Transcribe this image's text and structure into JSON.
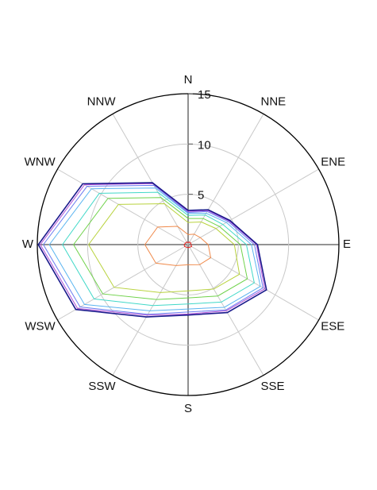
{
  "chart_data": {
    "type": "polar",
    "categories": [
      "N",
      "NNE",
      "ENE",
      "E",
      "ESE",
      "SSE",
      "S",
      "SSW",
      "WSW",
      "W",
      "WNW",
      "NNW"
    ],
    "rlim": [
      0,
      15
    ],
    "rticks": [
      5,
      10,
      15
    ],
    "grid": true,
    "series": [
      {
        "color": "#e8201c",
        "values": [
          0.2,
          0.3,
          0.3,
          0.3,
          0.4,
          0.3,
          0.3,
          0.3,
          0.4,
          0.4,
          0.3,
          0.3
        ]
      },
      {
        "color": "#f08a4b",
        "values": [
          1.0,
          1.2,
          1.4,
          2.0,
          2.6,
          2.3,
          2.0,
          2.4,
          3.7,
          4.3,
          3.5,
          2.1
        ]
      },
      {
        "color": "#b8d23c",
        "values": [
          2.2,
          2.6,
          3.2,
          4.6,
          5.9,
          5.1,
          4.6,
          5.5,
          8.5,
          9.9,
          8.0,
          4.7
        ]
      },
      {
        "color": "#6fd24a",
        "values": [
          2.6,
          3.0,
          3.6,
          5.2,
          6.8,
          5.9,
          5.3,
          6.3,
          9.8,
          11.4,
          9.2,
          5.4
        ]
      },
      {
        "color": "#40d8c8",
        "values": [
          2.9,
          3.4,
          4.0,
          5.8,
          7.6,
          6.6,
          5.9,
          7.0,
          10.8,
          12.5,
          10.2,
          6.0
        ]
      },
      {
        "color": "#5ab4f0",
        "values": [
          3.1,
          3.6,
          4.4,
          6.3,
          8.3,
          7.2,
          6.4,
          7.6,
          11.9,
          13.8,
          11.1,
          6.5
        ]
      },
      {
        "color": "#6a7cf0",
        "values": [
          3.2,
          3.8,
          4.6,
          6.6,
          8.6,
          7.5,
          6.7,
          8.0,
          12.4,
          14.4,
          11.6,
          6.8
        ]
      },
      {
        "color": "#b050d8",
        "values": [
          3.3,
          3.9,
          4.7,
          6.8,
          8.8,
          7.6,
          6.9,
          8.1,
          12.7,
          14.7,
          11.9,
          7.0
        ]
      },
      {
        "color": "#1a1a8c",
        "values": [
          3.4,
          4.0,
          4.8,
          6.9,
          9.0,
          7.8,
          7.0,
          8.3,
          12.9,
          14.9,
          12.1,
          7.1
        ]
      }
    ]
  }
}
